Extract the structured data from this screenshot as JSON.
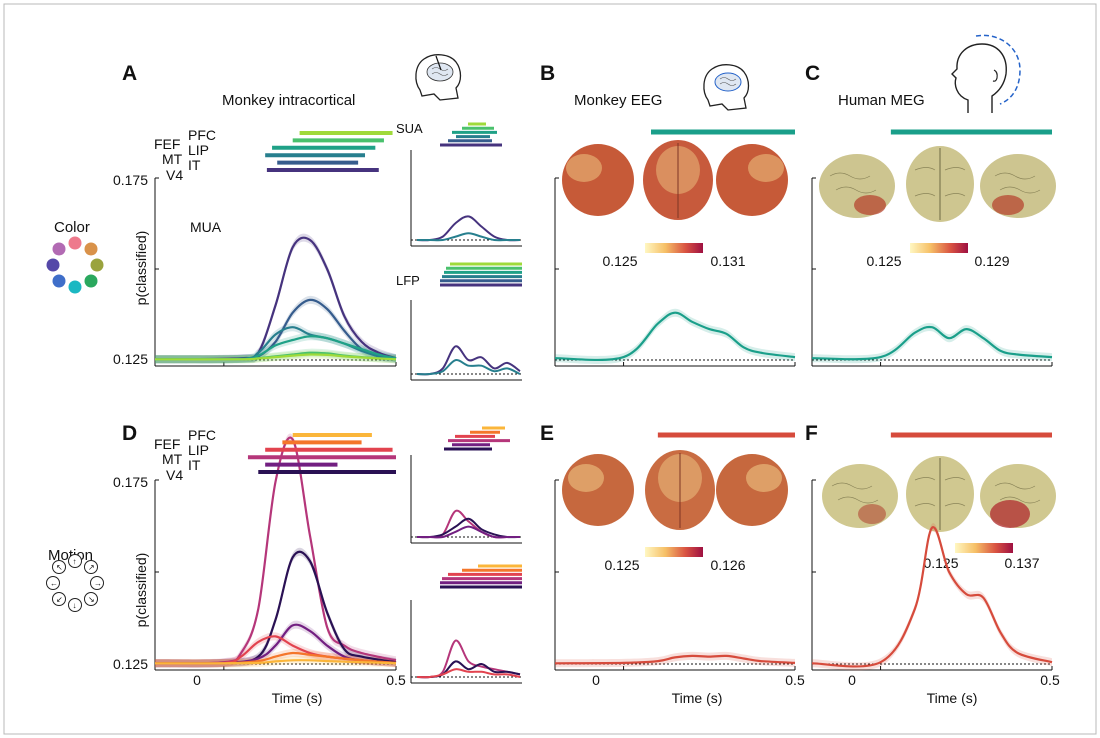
{
  "figure": {
    "colors": {
      "frame": "#b8b8b8",
      "teal": "#1a9f8a",
      "red": "#d64b3c",
      "brain_monkey": "#c4563a",
      "brain_human": "#c9c28a"
    },
    "icons": [
      "monkey-head-electrode-icon",
      "monkey-head-eeg-icon",
      "human-head-meg-icon",
      "color-wheel-icon",
      "motion-wheel-icon",
      "monkey-brain-render",
      "human-brain-render"
    ]
  },
  "row_labels": {
    "color": "Color",
    "motion": "Motion"
  },
  "panels": {
    "A": {
      "letter": "A",
      "title": "Monkey intracortical",
      "mua_label": "MUA",
      "sua_label": "SUA",
      "lfp_label": "LFP"
    },
    "B": {
      "letter": "B",
      "title": "Monkey EEG",
      "cb_min": "0.125",
      "cb_max": "0.131"
    },
    "C": {
      "letter": "C",
      "title": "Human MEG",
      "cb_min": "0.125",
      "cb_max": "0.129"
    },
    "D": {
      "letter": "D"
    },
    "E": {
      "letter": "E",
      "cb_min": "0.125",
      "cb_max": "0.126"
    },
    "F": {
      "letter": "F",
      "cb_min": "0.125",
      "cb_max": "0.137"
    }
  },
  "axes": {
    "ylabel": "p(classified)",
    "xlabel": "Time (s)",
    "ytick_low": "0.125",
    "ytick_high": "0.175",
    "xtick_0": "0",
    "xtick_05": "0.5"
  },
  "area_labels": {
    "stack": [
      "PFC",
      "FEF",
      "LIP",
      "MT",
      "IT",
      "V4"
    ]
  },
  "chart_data": [
    {
      "id": "A-MUA",
      "type": "line",
      "title": "Monkey intracortical",
      "xlabel": "Time (s)",
      "ylabel": "p(classified)",
      "xlim": [
        -0.2,
        0.5
      ],
      "ylim": [
        0.125,
        0.175
      ],
      "series": [
        {
          "name": "V4",
          "color": "#46337e",
          "x": [
            -0.2,
            0.05,
            0.1,
            0.15,
            0.2,
            0.25,
            0.3,
            0.35,
            0.4,
            0.45,
            0.5
          ],
          "y": [
            0.1252,
            0.1255,
            0.127,
            0.14,
            0.156,
            0.158,
            0.15,
            0.137,
            0.13,
            0.127,
            0.1255
          ]
        },
        {
          "name": "IT",
          "color": "#365c8d",
          "x": [
            -0.2,
            0.05,
            0.1,
            0.15,
            0.2,
            0.25,
            0.3,
            0.35,
            0.4,
            0.45,
            0.5
          ],
          "y": [
            0.1252,
            0.1253,
            0.126,
            0.13,
            0.138,
            0.1415,
            0.139,
            0.133,
            0.128,
            0.126,
            0.1253
          ]
        },
        {
          "name": "MT",
          "color": "#277f8e",
          "x": [
            -0.2,
            0.05,
            0.1,
            0.15,
            0.2,
            0.25,
            0.3,
            0.35,
            0.4,
            0.45,
            0.5
          ],
          "y": [
            0.1252,
            0.1253,
            0.127,
            0.132,
            0.134,
            0.132,
            0.131,
            0.1295,
            0.1275,
            0.126,
            0.1255
          ]
        },
        {
          "name": "LIP",
          "color": "#1fa187",
          "x": [
            -0.2,
            0.05,
            0.1,
            0.15,
            0.2,
            0.25,
            0.3,
            0.35,
            0.4,
            0.45,
            0.5
          ],
          "y": [
            0.1252,
            0.1253,
            0.1262,
            0.129,
            0.1305,
            0.1315,
            0.131,
            0.1295,
            0.128,
            0.1265,
            0.1255
          ]
        },
        {
          "name": "FEF",
          "color": "#4ac16d",
          "x": [
            -0.2,
            0.05,
            0.1,
            0.15,
            0.2,
            0.25,
            0.3,
            0.35,
            0.4,
            0.45,
            0.5
          ],
          "y": [
            0.1252,
            0.1252,
            0.1255,
            0.126,
            0.1265,
            0.127,
            0.1268,
            0.1262,
            0.1258,
            0.1255,
            0.1252
          ]
        },
        {
          "name": "PFC",
          "color": "#9fda3a",
          "x": [
            -0.2,
            0.05,
            0.1,
            0.15,
            0.2,
            0.25,
            0.3,
            0.35,
            0.4,
            0.45,
            0.5
          ],
          "y": [
            0.1252,
            0.1252,
            0.1254,
            0.1258,
            0.1262,
            0.1265,
            0.1264,
            0.126,
            0.1257,
            0.1254,
            0.1252
          ]
        }
      ],
      "significance_bars": [
        {
          "name": "PFC",
          "color": "#9fda3a",
          "x": [
            0.22,
            0.49
          ]
        },
        {
          "name": "FEF",
          "color": "#4ac16d",
          "x": [
            0.2,
            0.465
          ]
        },
        {
          "name": "LIP",
          "color": "#1fa187",
          "x": [
            0.14,
            0.44
          ]
        },
        {
          "name": "MT",
          "color": "#277f8e",
          "x": [
            0.12,
            0.41
          ]
        },
        {
          "name": "IT",
          "color": "#365c8d",
          "x": [
            0.155,
            0.39
          ]
        },
        {
          "name": "V4",
          "color": "#46337e",
          "x": [
            0.125,
            0.45
          ]
        }
      ]
    },
    {
      "id": "A-SUA",
      "type": "line",
      "title": "SUA",
      "series": [
        {
          "name": "V4",
          "color": "#46337e",
          "y": [
            0.125,
            0.125,
            0.126,
            0.13,
            0.132,
            0.129,
            0.126,
            0.125,
            0.125
          ]
        },
        {
          "name": "IT",
          "color": "#277f8e",
          "y": [
            0.125,
            0.125,
            0.125,
            0.126,
            0.127,
            0.126,
            0.125,
            0.125,
            0.125
          ]
        }
      ]
    },
    {
      "id": "A-LFP",
      "type": "line",
      "title": "LFP",
      "series": [
        {
          "name": "V4",
          "color": "#46337e",
          "y": [
            0.125,
            0.125,
            0.127,
            0.135,
            0.13,
            0.131,
            0.127,
            0.129,
            0.126
          ]
        },
        {
          "name": "IT",
          "color": "#277f8e",
          "y": [
            0.125,
            0.125,
            0.126,
            0.13,
            0.128,
            0.128,
            0.126,
            0.127,
            0.125
          ]
        }
      ]
    },
    {
      "id": "B-EEG-color",
      "type": "line",
      "title": "Monkey EEG",
      "xlim": [
        -0.2,
        0.5
      ],
      "ylim": [
        0.125,
        0.175
      ],
      "series": [
        {
          "name": "EEG",
          "color": "#1a9f8a",
          "x": [
            -0.2,
            0.0,
            0.1,
            0.15,
            0.2,
            0.25,
            0.3,
            0.35,
            0.4,
            0.5
          ],
          "y": [
            0.1255,
            0.1258,
            0.135,
            0.138,
            0.1355,
            0.1335,
            0.1322,
            0.1285,
            0.127,
            0.1258
          ]
        }
      ]
    },
    {
      "id": "C-MEG-color",
      "type": "line",
      "title": "Human MEG",
      "xlim": [
        -0.2,
        0.5
      ],
      "ylim": [
        0.125,
        0.175
      ],
      "series": [
        {
          "name": "MEG",
          "color": "#1a9f8a",
          "x": [
            -0.2,
            0.0,
            0.1,
            0.15,
            0.2,
            0.25,
            0.3,
            0.35,
            0.4,
            0.5
          ],
          "y": [
            0.1255,
            0.1258,
            0.1325,
            0.134,
            0.131,
            0.1335,
            0.131,
            0.1275,
            0.1265,
            0.1258
          ]
        }
      ]
    },
    {
      "id": "D-MUA",
      "type": "line",
      "xlabel": "Time (s)",
      "ylabel": "p(classified)",
      "xlim": [
        -0.2,
        0.5
      ],
      "ylim": [
        0.125,
        0.175
      ],
      "series": [
        {
          "name": "MT",
          "color": "#b5367a",
          "x": [
            -0.2,
            0.0,
            0.05,
            0.1,
            0.15,
            0.2,
            0.25,
            0.3,
            0.35,
            0.4,
            0.5
          ],
          "y": [
            0.1252,
            0.1255,
            0.128,
            0.14,
            0.1745,
            0.186,
            0.16,
            0.135,
            0.13,
            0.128,
            0.126
          ]
        },
        {
          "name": "V4",
          "color": "#2a1154",
          "x": [
            -0.2,
            0.0,
            0.1,
            0.15,
            0.2,
            0.25,
            0.3,
            0.35,
            0.4,
            0.5
          ],
          "y": [
            0.1252,
            0.1253,
            0.127,
            0.137,
            0.154,
            0.153,
            0.139,
            0.129,
            0.127,
            0.1255
          ]
        },
        {
          "name": "IT",
          "color": "#721f81",
          "x": [
            -0.2,
            0.0,
            0.1,
            0.15,
            0.2,
            0.25,
            0.3,
            0.35,
            0.4,
            0.5
          ],
          "y": [
            0.1252,
            0.1253,
            0.1265,
            0.13,
            0.1355,
            0.134,
            0.13,
            0.127,
            0.126,
            0.1253
          ]
        },
        {
          "name": "LIP",
          "color": "#e2434f",
          "x": [
            -0.2,
            0.0,
            0.05,
            0.1,
            0.15,
            0.2,
            0.25,
            0.3,
            0.4,
            0.5
          ],
          "y": [
            0.1252,
            0.1253,
            0.127,
            0.131,
            0.1325,
            0.13,
            0.128,
            0.127,
            0.126,
            0.1253
          ]
        },
        {
          "name": "FEF",
          "color": "#f4762a",
          "x": [
            -0.2,
            0.0,
            0.1,
            0.15,
            0.2,
            0.25,
            0.3,
            0.4,
            0.5
          ],
          "y": [
            0.1252,
            0.1252,
            0.1258,
            0.127,
            0.128,
            0.1275,
            0.127,
            0.126,
            0.1253
          ]
        },
        {
          "name": "PFC",
          "color": "#fbb63a",
          "x": [
            -0.2,
            0.0,
            0.1,
            0.15,
            0.2,
            0.25,
            0.3,
            0.4,
            0.5
          ],
          "y": [
            0.1252,
            0.1252,
            0.1253,
            0.1257,
            0.126,
            0.126,
            0.1258,
            0.1255,
            0.1252
          ]
        }
      ],
      "significance_bars": [
        {
          "name": "PFC",
          "color": "#fbb63a",
          "x": [
            0.2,
            0.43
          ]
        },
        {
          "name": "FEF",
          "color": "#f4762a",
          "x": [
            0.17,
            0.4
          ]
        },
        {
          "name": "LIP",
          "color": "#e2434f",
          "x": [
            0.12,
            0.49
          ]
        },
        {
          "name": "MT",
          "color": "#b5367a",
          "x": [
            0.07,
            0.5
          ]
        },
        {
          "name": "IT",
          "color": "#721f81",
          "x": [
            0.12,
            0.33
          ]
        },
        {
          "name": "V4",
          "color": "#2a1154",
          "x": [
            0.1,
            0.5
          ]
        }
      ]
    },
    {
      "id": "E-EEG-motion",
      "type": "line",
      "xlabel": "Time (s)",
      "xlim": [
        -0.2,
        0.5
      ],
      "ylim": [
        0.125,
        0.175
      ],
      "series": [
        {
          "name": "EEG",
          "color": "#d64b3c",
          "x": [
            -0.2,
            0.0,
            0.1,
            0.15,
            0.2,
            0.25,
            0.3,
            0.35,
            0.4,
            0.5
          ],
          "y": [
            0.1252,
            0.1253,
            0.1258,
            0.1268,
            0.1272,
            0.127,
            0.1272,
            0.1265,
            0.1258,
            0.1253
          ]
        }
      ]
    },
    {
      "id": "F-MEG-motion",
      "type": "line",
      "xlabel": "Time (s)",
      "xlim": [
        -0.2,
        0.5
      ],
      "ylim": [
        0.125,
        0.175
      ],
      "series": [
        {
          "name": "MEG",
          "color": "#d64b3c",
          "x": [
            -0.2,
            0.0,
            0.1,
            0.15,
            0.2,
            0.25,
            0.3,
            0.35,
            0.4,
            0.5
          ],
          "y": [
            0.1252,
            0.1255,
            0.14,
            0.162,
            0.15,
            0.144,
            0.143,
            0.1335,
            0.128,
            0.1255
          ]
        }
      ]
    }
  ]
}
